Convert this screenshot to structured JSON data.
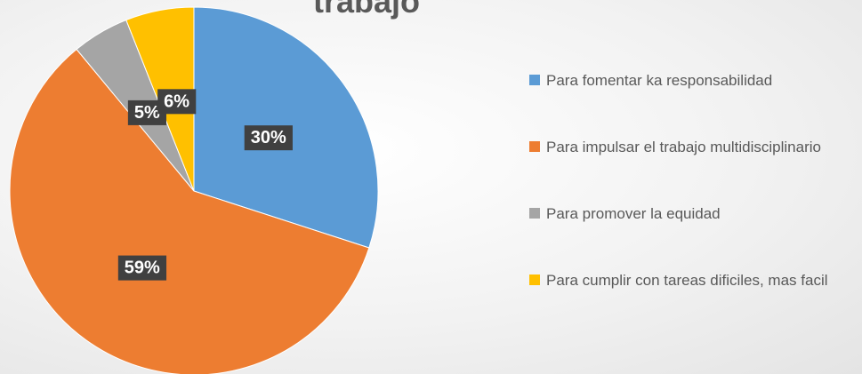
{
  "chart_data": {
    "type": "pie",
    "title": "trabajo",
    "categories": [
      "Para fomentar ka responsabilidad",
      "Para impulsar el trabajo multidisciplinario",
      "Para promover la equidad",
      "Para cumplir con tareas dificiles, mas facil"
    ],
    "values": [
      30,
      59,
      5,
      6
    ],
    "value_labels": [
      "30%",
      "59%",
      "5%",
      "6%"
    ],
    "colors": [
      "#5b9bd5",
      "#ed7d31",
      "#a5a5a5",
      "#ffc000"
    ],
    "legend": "right"
  }
}
